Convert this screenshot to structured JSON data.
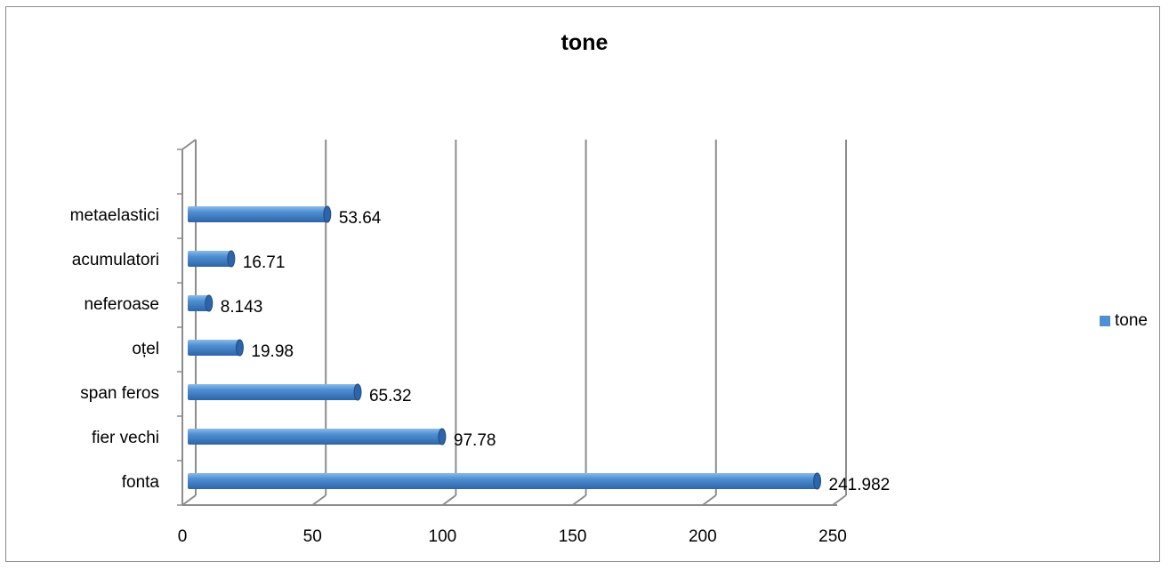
{
  "chart_data": {
    "type": "bar",
    "orientation": "horizontal",
    "title": "tone",
    "categories": [
      "fonta",
      "fier vechi",
      "span feros",
      "oțel",
      "neferoase",
      "acumulatori",
      "metaelastici"
    ],
    "series": [
      {
        "name": "tone",
        "values": [
          241.982,
          97.78,
          65.32,
          19.98,
          8.143,
          16.71,
          53.64
        ]
      }
    ],
    "data_labels": [
      "241.982",
      "97.78",
      "65.32",
      "19.98",
      "8.143",
      "16.71",
      "53.64"
    ],
    "x_ticks": [
      "0",
      "50",
      "100",
      "150",
      "200",
      "250"
    ],
    "xlim": [
      0,
      250
    ],
    "grid": true,
    "legend_position": "right",
    "colors": {
      "bar": "#4f8fd3",
      "bar_light": "#8dbbe8",
      "bar_dark": "#2e64a8",
      "grid": "#8c8c8c"
    }
  }
}
